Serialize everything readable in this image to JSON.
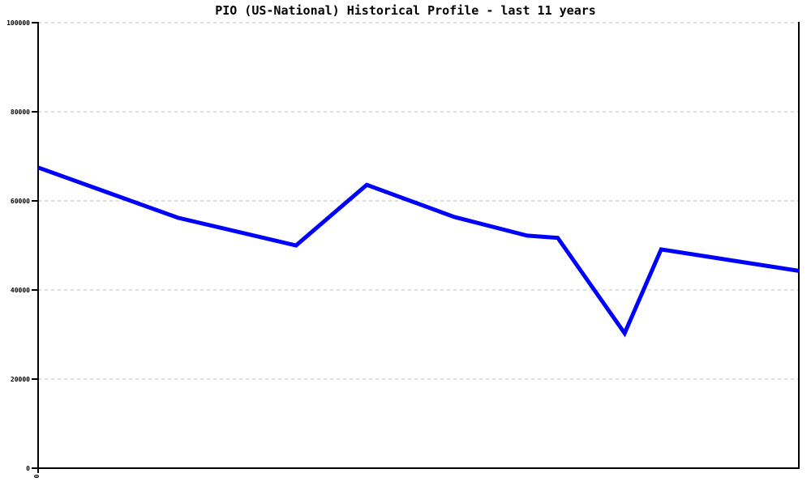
{
  "page": {
    "background": "#ffffff"
  },
  "colors": {
    "line": "#0000ff",
    "grid": "#c0c0c0",
    "axis": "#000000",
    "title": "#000000"
  },
  "chart_data": {
    "type": "line",
    "title": "PIO (US-National) Historical Profile - last 11 years",
    "xlabel": "",
    "ylabel": "",
    "ylim": [
      0,
      100000
    ],
    "yticks": [
      0,
      20000,
      40000,
      60000,
      80000,
      100000
    ],
    "ytick_labels": [
      "0",
      "20000",
      "40000",
      "60000",
      "80000",
      "100000"
    ],
    "xtick_labels": [
      "0"
    ],
    "grid": "horizontal dashed gridlines at each y tick, no vertical gridlines",
    "legend": "none",
    "borders": "solid black left axis, bottom axis and right border; no top border",
    "series": [
      {
        "name": "PIO",
        "points": [
          {
            "x_pct": 0.0,
            "value": 67500
          },
          {
            "x_pct": 18.4,
            "value": 56200
          },
          {
            "x_pct": 33.9,
            "value": 50000
          },
          {
            "x_pct": 43.2,
            "value": 63600
          },
          {
            "x_pct": 54.7,
            "value": 56400
          },
          {
            "x_pct": 64.3,
            "value": 52200
          },
          {
            "x_pct": 68.3,
            "value": 51700
          },
          {
            "x_pct": 77.1,
            "value": 30300
          },
          {
            "x_pct": 81.9,
            "value": 49100
          },
          {
            "x_pct": 100.0,
            "value": 44300
          }
        ]
      }
    ]
  }
}
